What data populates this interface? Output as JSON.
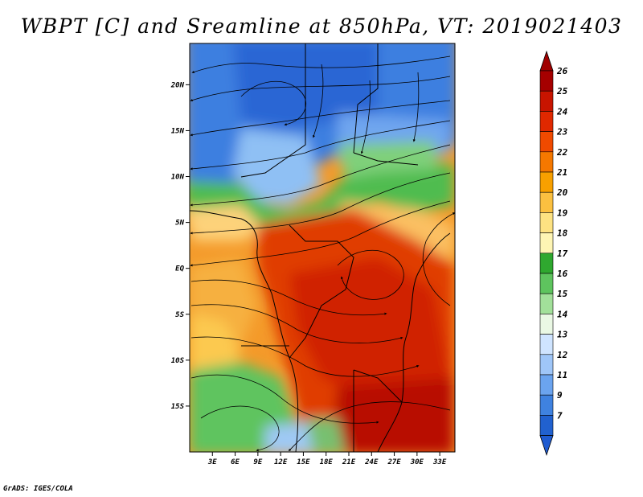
{
  "map": {
    "title": "WBPT [C] and Sreamline at 850hPa, VT: 2019021403",
    "credit": "GrADS: IGES/COLA",
    "lat_labels": [
      "20N",
      "15N",
      "10N",
      "5N",
      "EQ",
      "5S",
      "10S",
      "15S"
    ],
    "lon_labels": [
      "3E",
      "6E",
      "9E",
      "12E",
      "15E",
      "18E",
      "21E",
      "24E",
      "27E",
      "30E",
      "33E"
    ],
    "lat_values": [
      20,
      15,
      10,
      5,
      0,
      -5,
      -10,
      -15
    ],
    "lon_values": [
      3,
      6,
      9,
      12,
      15,
      18,
      21,
      24,
      27,
      30,
      33
    ],
    "extent": {
      "lon": [
        0,
        35
      ],
      "lat": [
        -20,
        24.5
      ]
    }
  },
  "colorbar": {
    "labels": [
      "26",
      "25",
      "24",
      "23",
      "22",
      "21",
      "20",
      "19",
      "18",
      "17",
      "16",
      "15",
      "14",
      "13",
      "12",
      "11",
      "9",
      "7"
    ],
    "colors": [
      "#a50000",
      "#c81400",
      "#e02800",
      "#f04a00",
      "#f57800",
      "#f8a000",
      "#fbc040",
      "#fde282",
      "#fef5b4",
      "#2fa82f",
      "#5ec45e",
      "#a2e09a",
      "#eaf8e4",
      "#cfe4ff",
      "#9fc6f8",
      "#6ba4ef",
      "#3f82e0",
      "#2161cf"
    ],
    "over_color": "#a00000",
    "under_color": "#1f5bd0"
  }
}
